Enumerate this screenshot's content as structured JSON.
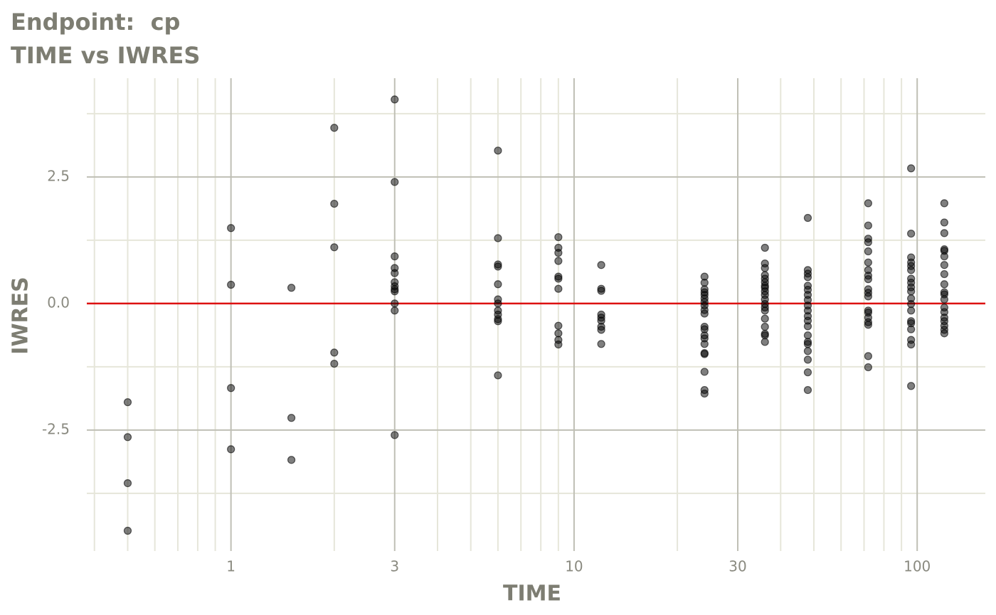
{
  "chart_data": {
    "type": "scatter",
    "title": "Endpoint:  cp",
    "subtitle": "TIME vs IWRES",
    "x_label": "TIME",
    "y_label": "IWRES",
    "x_scale": "log",
    "xlim": [
      0.38,
      158
    ],
    "ylim": [
      -4.89,
      4.45
    ],
    "xticks": [
      1,
      3,
      10,
      30,
      100
    ],
    "x_minor_ticks": [
      0.4,
      0.5,
      0.6,
      0.7,
      0.8,
      0.9,
      2,
      4,
      5,
      6,
      7,
      8,
      9,
      20,
      40,
      50,
      60,
      70,
      80,
      90
    ],
    "yticks": [
      2.5,
      {
        "value": 0,
        "label": "0.0"
      },
      -2.5
    ],
    "y_minor_ticks": [
      -3.75,
      -1.25,
      1.25,
      3.75
    ],
    "grid": true,
    "reference_line": {
      "value": 0,
      "color": "#dd1111"
    },
    "color": "#000000",
    "x": [
      0.5,
      0.5,
      0.5,
      0.5,
      1,
      1,
      1,
      1,
      1.5,
      1.5,
      1.5,
      2,
      2,
      2,
      2,
      2,
      3,
      3,
      3,
      3,
      3,
      3,
      3,
      3,
      3,
      3,
      3,
      3,
      6,
      6,
      6,
      6,
      6,
      6,
      6,
      6,
      6,
      6,
      6,
      6,
      9,
      9,
      9,
      9,
      9,
      9,
      9,
      9,
      9,
      9,
      9,
      12,
      12,
      12,
      12,
      12,
      12,
      12,
      12,
      12,
      24,
      24,
      24,
      24,
      24,
      24,
      24,
      24,
      24,
      24,
      24,
      24,
      24,
      24,
      24,
      24,
      24,
      24,
      24,
      24,
      36,
      36,
      36,
      36,
      36,
      36,
      36,
      36,
      36,
      36,
      36,
      36,
      36,
      36,
      36,
      36,
      36,
      36,
      36,
      48,
      48,
      48,
      48,
      48,
      48,
      48,
      48,
      48,
      48,
      48,
      48,
      48,
      48,
      48,
      48,
      48,
      48,
      48,
      48,
      72,
      72,
      72,
      72,
      72,
      72,
      72,
      72,
      72,
      72,
      72,
      72,
      72,
      72,
      72,
      72,
      72,
      72,
      72,
      96,
      96,
      96,
      96,
      96,
      96,
      96,
      96,
      96,
      96,
      96,
      96,
      96,
      96,
      96,
      96,
      96,
      96,
      96,
      120,
      120,
      120,
      120,
      120,
      120,
      120,
      120,
      120,
      120,
      120,
      120,
      120,
      120,
      120,
      120,
      120,
      120,
      120
    ],
    "y": [
      -1.95,
      -2.64,
      -3.55,
      -4.49,
      1.49,
      0.37,
      -1.67,
      -2.88,
      0.31,
      -2.26,
      -3.09,
      3.47,
      1.97,
      1.11,
      -0.97,
      -1.19,
      4.03,
      2.4,
      0.93,
      0.7,
      0.6,
      0.42,
      0.34,
      0.28,
      0.24,
      0,
      -0.14,
      -2.6,
      3.02,
      1.29,
      0.77,
      0.73,
      0.38,
      0.08,
      0,
      -0.14,
      -0.22,
      -0.31,
      -0.35,
      -1.42,
      1.31,
      1.1,
      1.0,
      0.84,
      0.53,
      0.49,
      0.29,
      -0.44,
      -0.59,
      -0.72,
      -0.81,
      0.76,
      0.29,
      0.25,
      -0.22,
      -0.28,
      -0.34,
      -0.46,
      -0.52,
      -0.8,
      0.53,
      0.41,
      0.28,
      0.22,
      0.17,
      0.1,
      0.03,
      -0.04,
      -0.13,
      -0.2,
      -0.46,
      -0.51,
      -0.63,
      -0.69,
      -0.8,
      -0.98,
      -1.0,
      -1.35,
      -1.71,
      -1.78,
      1.1,
      0.79,
      0.7,
      0.56,
      0.49,
      0.42,
      0.35,
      0.31,
      0.24,
      0.17,
      0.08,
      -0.01,
      -0.08,
      -0.14,
      -0.3,
      -0.46,
      -0.6,
      -0.63,
      -0.76,
      1.69,
      0.66,
      0.59,
      0.52,
      0.35,
      0.27,
      0.17,
      0.07,
      -0.04,
      -0.14,
      -0.25,
      -0.34,
      -0.45,
      -0.63,
      -0.76,
      -0.8,
      -0.94,
      -1.11,
      -1.36,
      -1.71,
      1.98,
      1.54,
      1.28,
      1.21,
      1.03,
      0.81,
      0.66,
      0.55,
      0.48,
      0.28,
      0.21,
      0.14,
      -0.14,
      -0.18,
      -0.28,
      -0.37,
      -0.42,
      -1.04,
      -1.26,
      2.67,
      1.38,
      0.91,
      0.81,
      0.74,
      0.66,
      0.49,
      0.41,
      0.32,
      0.24,
      0.1,
      -0.01,
      -0.14,
      -0.35,
      -0.39,
      -0.51,
      -0.72,
      -0.81,
      -1.63,
      1.98,
      1.6,
      1.39,
      1.07,
      1.04,
      0.93,
      0.76,
      0.58,
      0.38,
      0.22,
      0.18,
      0.08,
      -0.08,
      -0.17,
      -0.28,
      -0.35,
      -0.44,
      -0.52,
      -0.59
    ]
  }
}
